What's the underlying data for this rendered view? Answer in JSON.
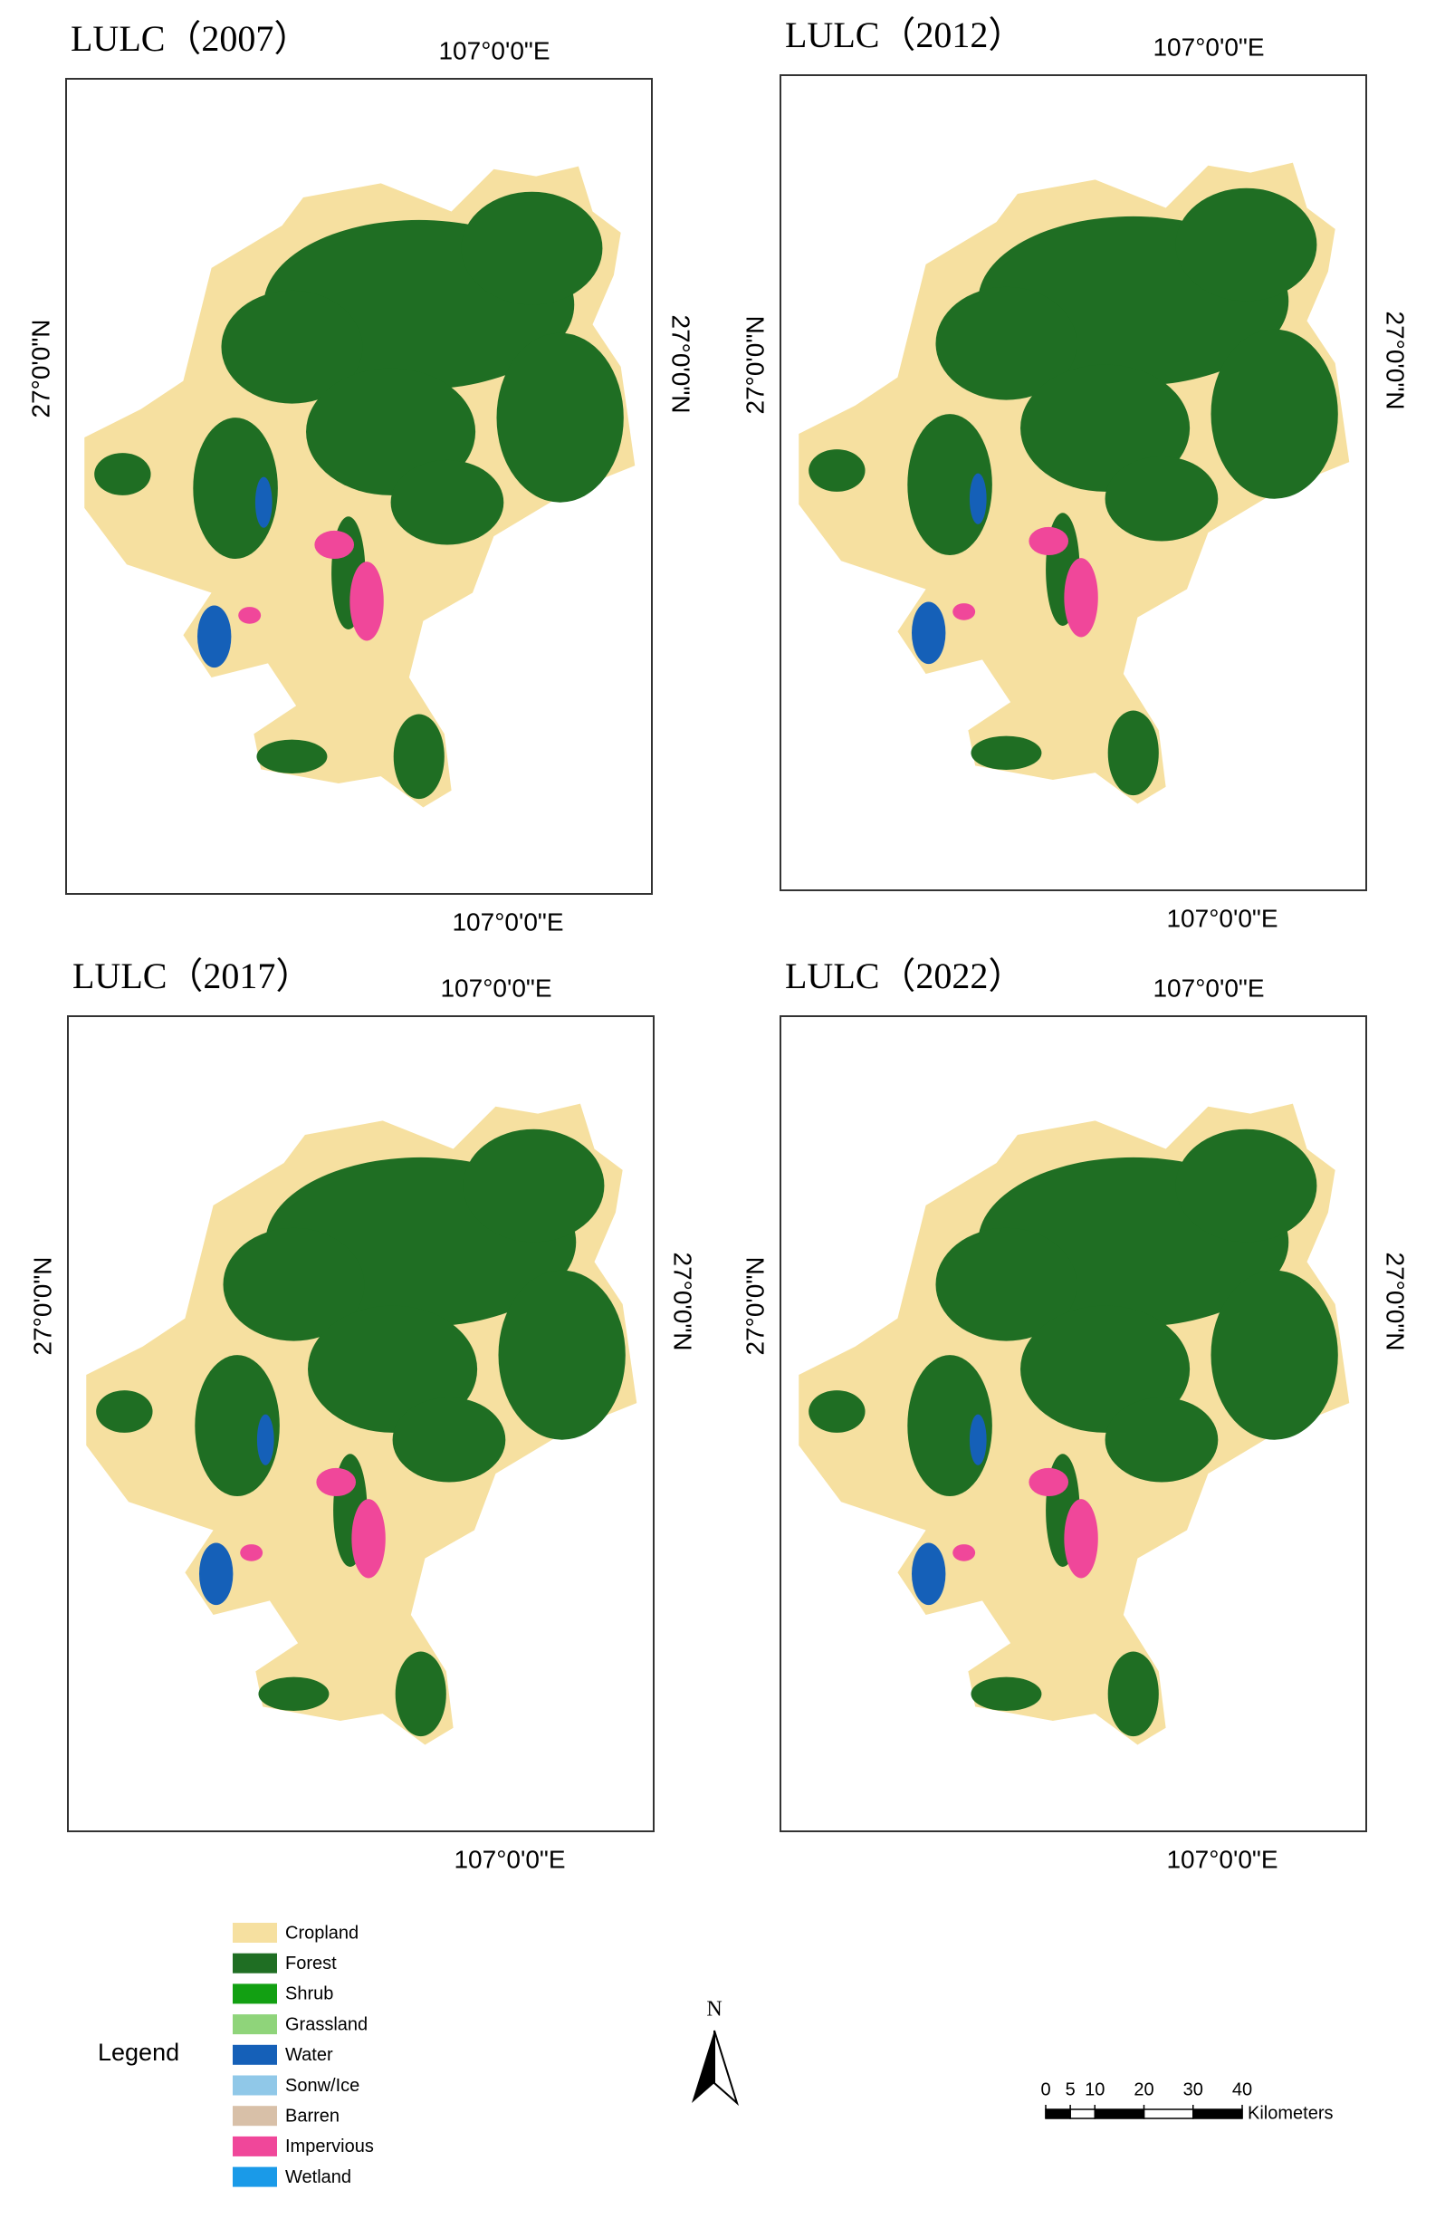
{
  "panels": [
    {
      "title": "LULC（2007）",
      "lon_top": "107°0'0\"E",
      "lon_bottom": "107°0'0\"E",
      "lat_left": "27°0'0\"N",
      "lat_right": "27°0'0\"N"
    },
    {
      "title": "LULC（2012）",
      "lon_top": "107°0'0\"E",
      "lon_bottom": "107°0'0\"E",
      "lat_left": "27°0'0\"N",
      "lat_right": "27°0'0\"N"
    },
    {
      "title": "LULC（2017）",
      "lon_top": "107°0'0\"E",
      "lon_bottom": "107°0'0\"E",
      "lat_left": "27°0'0\"N",
      "lat_right": "27°0'0\"N"
    },
    {
      "title": "LULC（2022）",
      "lon_top": "107°0'0\"E",
      "lon_bottom": "107°0'0\"E",
      "lat_left": "27°0'0\"N",
      "lat_right": "27°0'0\"N"
    }
  ],
  "legend": {
    "title": "Legend",
    "items": [
      {
        "name": "Cropland",
        "color": "#f6e0a0"
      },
      {
        "name": "Forest",
        "color": "#1f6e23"
      },
      {
        "name": "Shrub",
        "color": "#12a012"
      },
      {
        "name": "Grassland",
        "color": "#8fd47a"
      },
      {
        "name": "Water",
        "color": "#1560b8"
      },
      {
        "name": "Sonw/Ice",
        "color": "#90c8e8"
      },
      {
        "name": "Barren",
        "color": "#d8c0a8"
      },
      {
        "name": "Impervious",
        "color": "#f0479a"
      },
      {
        "name": "Wetland",
        "color": "#1a9ae8"
      }
    ]
  },
  "north_arrow": "N",
  "scale_bar": {
    "ticks": [
      0,
      5,
      10,
      20,
      30,
      40
    ],
    "unit": "Kilometers"
  }
}
